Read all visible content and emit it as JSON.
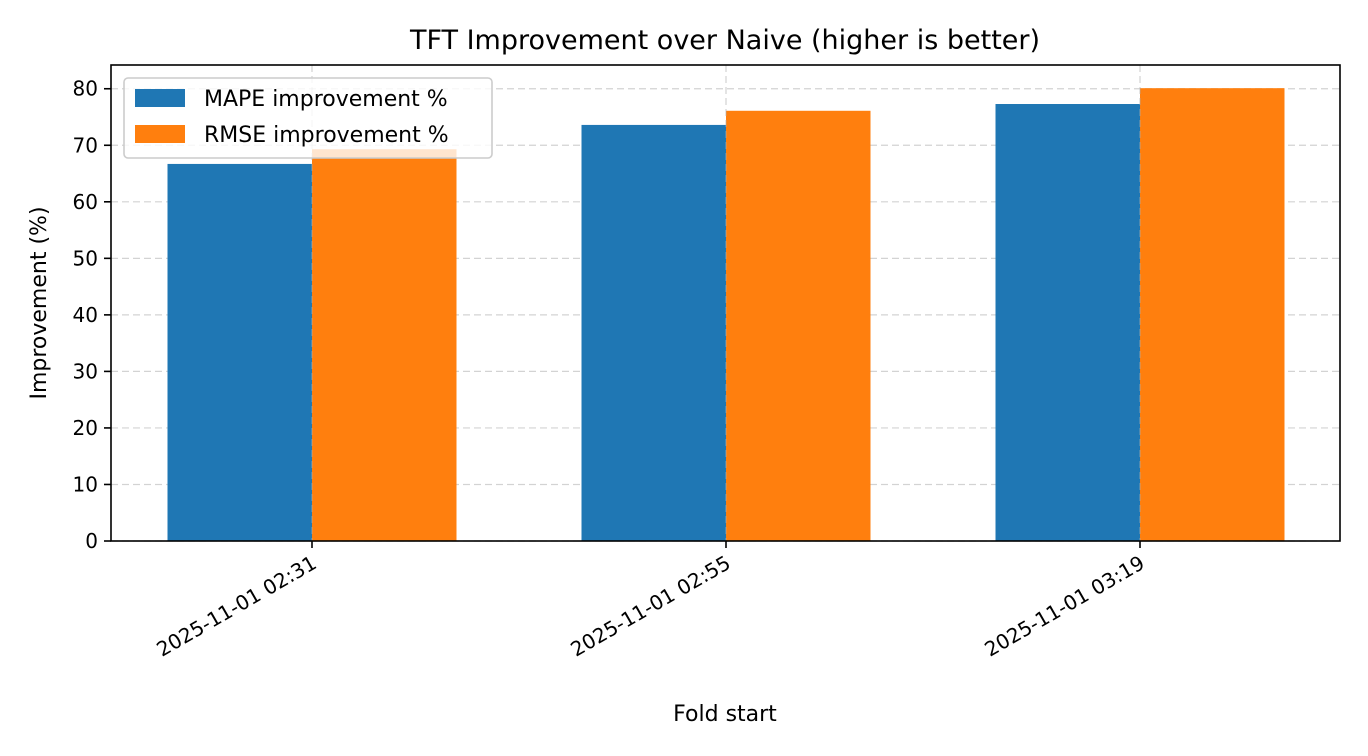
{
  "chart_data": {
    "type": "bar",
    "title": "TFT Improvement over Naive (higher is better)",
    "xlabel": "Fold start",
    "ylabel": "Improvement (%)",
    "categories": [
      "2025-11-01 02:31",
      "2025-11-01 02:55",
      "2025-11-01 03:19"
    ],
    "series": [
      {
        "name": "MAPE improvement %",
        "color": "#1f77b4",
        "values": [
          66.7,
          73.6,
          77.3
        ]
      },
      {
        "name": "RMSE improvement %",
        "color": "#ff7f0e",
        "values": [
          69.3,
          76.1,
          80.1
        ]
      }
    ],
    "ylim": [
      0,
      84.2
    ],
    "yticks": [
      0,
      10,
      20,
      30,
      40,
      50,
      60,
      70,
      80
    ],
    "grid": true,
    "legend_position": "top-left"
  }
}
